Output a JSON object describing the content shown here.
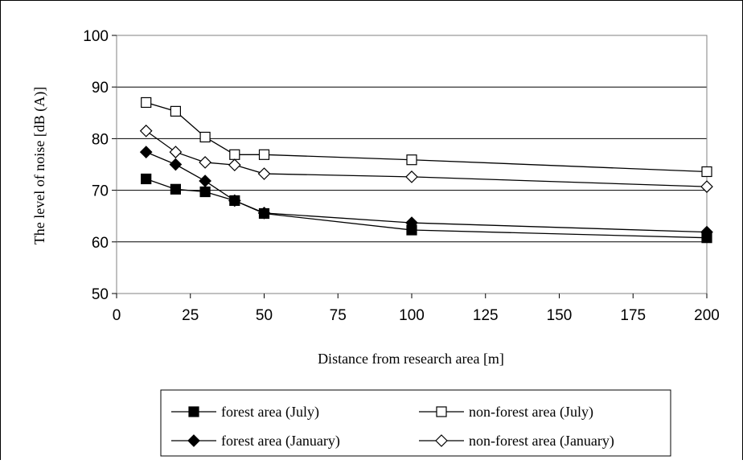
{
  "chart_data": {
    "type": "line",
    "title": "",
    "xlabel": "Distance from research area [m]",
    "ylabel": "The level of noise [dB (A)]",
    "xlim": [
      0,
      200
    ],
    "ylim": [
      50,
      100
    ],
    "x_scale": "piecewise",
    "x_ticks": [
      0,
      25,
      50,
      75,
      100,
      125,
      150,
      175,
      200
    ],
    "y_ticks": [
      50,
      60,
      70,
      80,
      90,
      100
    ],
    "grid": "horizontal",
    "legend_position": "bottom",
    "x": [
      10,
      20,
      30,
      40,
      50,
      100,
      200
    ],
    "series": [
      {
        "name": "forest area (July)",
        "marker": "square-filled",
        "values": [
          72.2,
          70.2,
          69.7,
          68.0,
          65.5,
          62.3,
          60.8
        ]
      },
      {
        "name": "non-forest area (July)",
        "marker": "square-open",
        "values": [
          87.0,
          85.3,
          80.3,
          76.9,
          76.9,
          75.9,
          73.6
        ]
      },
      {
        "name": "forest area (January)",
        "marker": "diamond-filled",
        "values": [
          77.4,
          75.0,
          71.8,
          68.0,
          65.6,
          63.7,
          61.9
        ]
      },
      {
        "name": "non-forest area (January)",
        "marker": "diamond-open",
        "values": [
          81.5,
          77.4,
          75.4,
          74.9,
          73.2,
          72.6,
          70.7
        ]
      }
    ]
  }
}
